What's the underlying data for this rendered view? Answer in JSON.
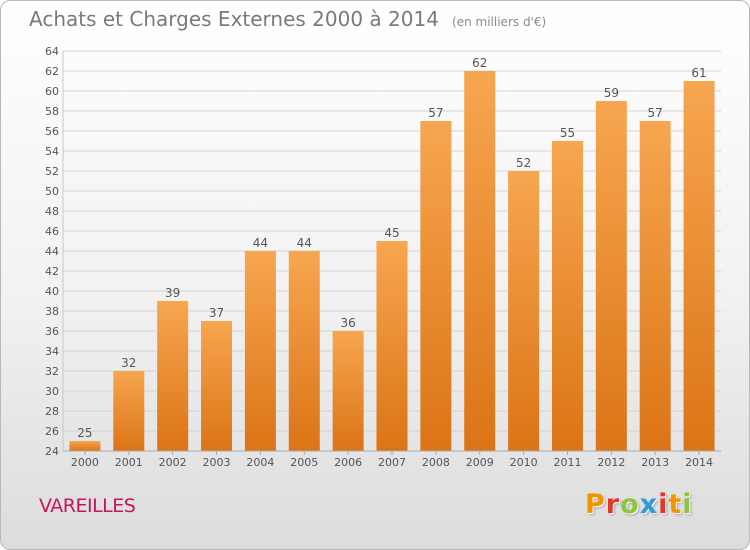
{
  "header": {
    "title": "Achats et Charges Externes 2000 à 2014",
    "unit": "(en milliers d'€)"
  },
  "footer": {
    "place": "VAREILLES",
    "logo": "Proxiti",
    "logo_colors": [
      "#f29400",
      "#e4342b",
      "#8cc63f",
      "#2e9bd6",
      "#e4342b",
      "#f29400",
      "#8cc63f"
    ]
  },
  "colors": {
    "bar_top": "#f7a650",
    "bar_bottom": "#db7416",
    "grid": "#d4d4d4",
    "axis_text": "#555555",
    "place_text": "#c2185b"
  },
  "chart_data": {
    "type": "bar",
    "title": "Achats et Charges Externes 2000 à 2014",
    "subtitle": "(en milliers d'€)",
    "xlabel": "",
    "ylabel": "",
    "categories": [
      "2000",
      "2001",
      "2002",
      "2003",
      "2004",
      "2005",
      "2006",
      "2007",
      "2008",
      "2009",
      "2010",
      "2011",
      "2012",
      "2013",
      "2014"
    ],
    "values": [
      25,
      32,
      39,
      37,
      44,
      44,
      36,
      45,
      57,
      62,
      52,
      55,
      59,
      57,
      61
    ],
    "ylim": [
      24,
      64
    ],
    "yticks": [
      "24",
      "26",
      "28",
      "30",
      "32",
      "34",
      "36",
      "38",
      "40",
      "42",
      "44",
      "46",
      "48",
      "50",
      "52",
      "54",
      "56",
      "58",
      "60",
      "62",
      "64"
    ],
    "grid": true,
    "data_labels": true
  }
}
